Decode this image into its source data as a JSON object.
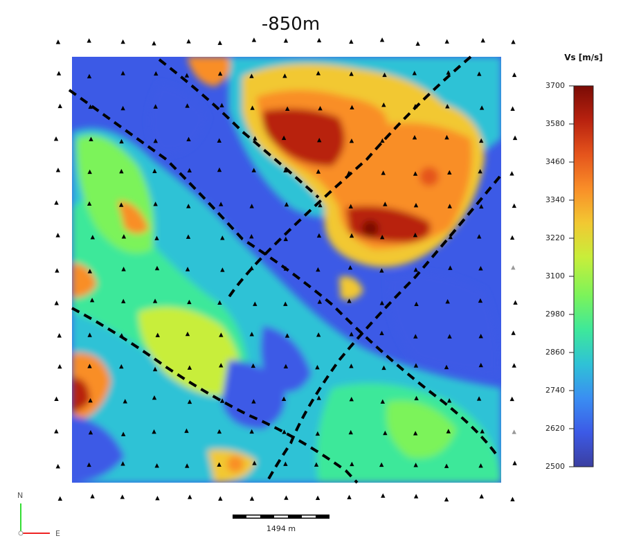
{
  "map": {
    "title": "-850m",
    "colorbar": {
      "title": "Vs [m/s]",
      "ticks": [
        "3700",
        "3580",
        "3460",
        "3340",
        "3220",
        "3100",
        "2980",
        "2860",
        "2740",
        "2620",
        "2500"
      ],
      "min": 2500,
      "max": 3700,
      "colors": [
        "#3b3fa0",
        "#3c5ae6",
        "#3a8ef2",
        "#2fc2d6",
        "#3ee89a",
        "#7cf35a",
        "#c8ee3a",
        "#f2c832",
        "#f98e28",
        "#e5541c",
        "#b8220f",
        "#7a0b05"
      ]
    },
    "scale_bar": {
      "label": "1494 m"
    },
    "north_arrow": {
      "north_label": "N",
      "east_label": "E"
    },
    "stations": {
      "marker": "triangle-icon"
    },
    "faults": {
      "style": "dashed",
      "count": 5
    }
  }
}
